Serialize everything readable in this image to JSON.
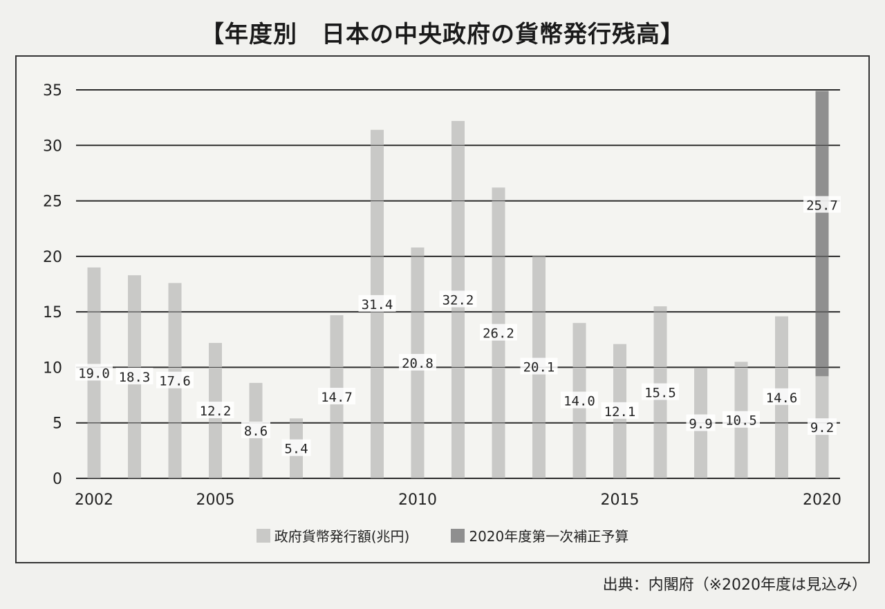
{
  "title": "【年度別　日本の中央政府の貨幣発行残高】",
  "source": "出典：内閣府（※2020年度は見込み）",
  "legend": {
    "base_label": "政府貨幣発行額(兆円)",
    "supp_label": "2020年度第一次補正予算"
  },
  "colors": {
    "base": "#c9c9c7",
    "supp": "#8f8f8f",
    "grid": "#2a2a2a",
    "label_bg": "#ffffff"
  },
  "chart_data": {
    "type": "bar",
    "title": "【年度別　日本の中央政府の貨幣発行残高】",
    "xlabel": "",
    "ylabel": "",
    "ylim": [
      0,
      35
    ],
    "yticks": [
      0,
      5,
      10,
      15,
      20,
      25,
      30,
      35
    ],
    "grid": true,
    "legend_position": "bottom",
    "categories": [
      "2002",
      "2003",
      "2004",
      "2005",
      "2006",
      "2007",
      "2008",
      "2009",
      "2010",
      "2011",
      "2012",
      "2013",
      "2014",
      "2015",
      "2016",
      "2017",
      "2018",
      "2019",
      "2020"
    ],
    "x_tick_labels": [
      "2002",
      "",
      "",
      "2005",
      "",
      "",
      "",
      "",
      "2010",
      "",
      "",
      "",
      "",
      "2015",
      "",
      "",
      "",
      "",
      "2020"
    ],
    "series": [
      {
        "name": "政府貨幣発行額(兆円)",
        "values": [
          19.0,
          18.3,
          17.6,
          12.2,
          8.6,
          5.4,
          14.7,
          31.4,
          20.8,
          32.2,
          26.2,
          20.1,
          14.0,
          12.1,
          15.5,
          9.9,
          10.5,
          14.6,
          9.2
        ],
        "labels": [
          "19.0",
          "18.3",
          "17.6",
          "12.2",
          "8.6",
          "5.4",
          "14.7",
          "31.4",
          "20.8",
          "32.2",
          "26.2",
          "20.1",
          "14.0",
          "12.1",
          "15.5",
          "9.9",
          "10.5",
          "14.6",
          "9.2"
        ]
      },
      {
        "name": "2020年度第一次補正予算",
        "values": [
          0,
          0,
          0,
          0,
          0,
          0,
          0,
          0,
          0,
          0,
          0,
          0,
          0,
          0,
          0,
          0,
          0,
          0,
          25.7
        ],
        "labels": [
          "",
          "",
          "",
          "",
          "",
          "",
          "",
          "",
          "",
          "",
          "",
          "",
          "",
          "",
          "",
          "",
          "",
          "",
          "25.7"
        ]
      }
    ]
  }
}
